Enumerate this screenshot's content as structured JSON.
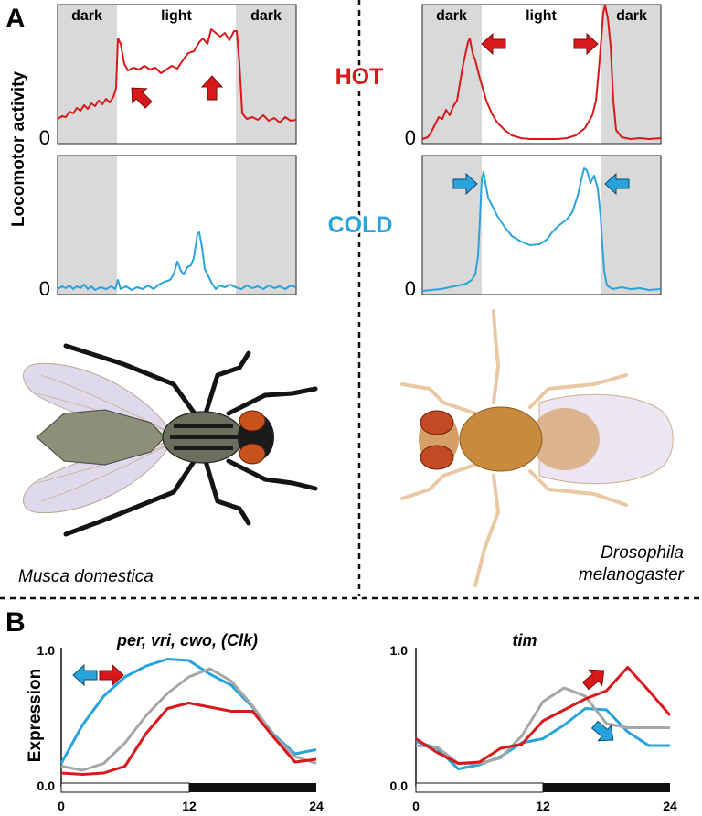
{
  "panel_a": {
    "label": "A",
    "y_axis_label": "Locomotor activity",
    "zero_label": "0",
    "dark_label": "dark",
    "light_label": "light",
    "hot_label": "HOT",
    "cold_label": "COLD",
    "species_left": "Musca domestica",
    "species_right_line1": "Drosophila",
    "species_right_line2": "melanogaster",
    "colors": {
      "hot": "#d7191c",
      "cold": "#29a3dc",
      "dark_shade": "#d9d9d9"
    }
  },
  "panel_b": {
    "label": "B",
    "y_axis_label": "Expression",
    "left_title": "per, vri, cwo, (Clk)",
    "right_title": "tim",
    "ytick_top": "1.0",
    "ytick_bottom": "0.0",
    "xtick_0": "0",
    "xtick_12": "12",
    "xtick_24": "24",
    "colors": {
      "hot": "#d7191c",
      "cold": "#29a3dc",
      "control": "#a6a6a6"
    }
  },
  "chart_data": [
    {
      "type": "line",
      "title": "per, vri, cwo, (Clk)",
      "ylabel": "Expression",
      "x": [
        0,
        2,
        4,
        6,
        8,
        10,
        12,
        14,
        16,
        18,
        20,
        22,
        24
      ],
      "ylim": [
        0,
        1.0
      ],
      "xlim": [
        0,
        24
      ],
      "series": [
        {
          "color": "#29a3dc",
          "values": [
            0.17,
            0.45,
            0.66,
            0.8,
            0.88,
            0.93,
            0.92,
            0.82,
            0.74,
            0.58,
            0.38,
            0.24,
            0.27
          ]
        },
        {
          "color": "#a6a6a6",
          "values": [
            0.15,
            0.12,
            0.17,
            0.32,
            0.52,
            0.68,
            0.8,
            0.86,
            0.77,
            0.59,
            0.37,
            0.22,
            0.17
          ]
        },
        {
          "color": "#d7191c",
          "values": [
            0.1,
            0.09,
            0.1,
            0.15,
            0.39,
            0.57,
            0.61,
            0.58,
            0.55,
            0.55,
            0.36,
            0.18,
            0.2
          ]
        }
      ]
    },
    {
      "type": "line",
      "title": "tim",
      "ylabel": "Expression",
      "x": [
        0,
        2,
        4,
        6,
        8,
        10,
        12,
        14,
        16,
        18,
        20,
        22,
        24
      ],
      "ylim": [
        0,
        1.0
      ],
      "xlim": [
        0,
        24
      ],
      "series": [
        {
          "color": "#29a3dc",
          "values": [
            0.33,
            0.28,
            0.13,
            0.16,
            0.22,
            0.32,
            0.35,
            0.45,
            0.57,
            0.56,
            0.4,
            0.3,
            0.3
          ]
        },
        {
          "color": "#a6a6a6",
          "values": [
            0.3,
            0.29,
            0.17,
            0.17,
            0.21,
            0.37,
            0.62,
            0.72,
            0.66,
            0.46,
            0.43,
            0.43,
            0.43
          ]
        },
        {
          "color": "#d7191c",
          "values": [
            0.35,
            0.25,
            0.17,
            0.18,
            0.28,
            0.31,
            0.48,
            0.56,
            0.64,
            0.7,
            0.87,
            0.7,
            0.52
          ]
        }
      ]
    }
  ]
}
